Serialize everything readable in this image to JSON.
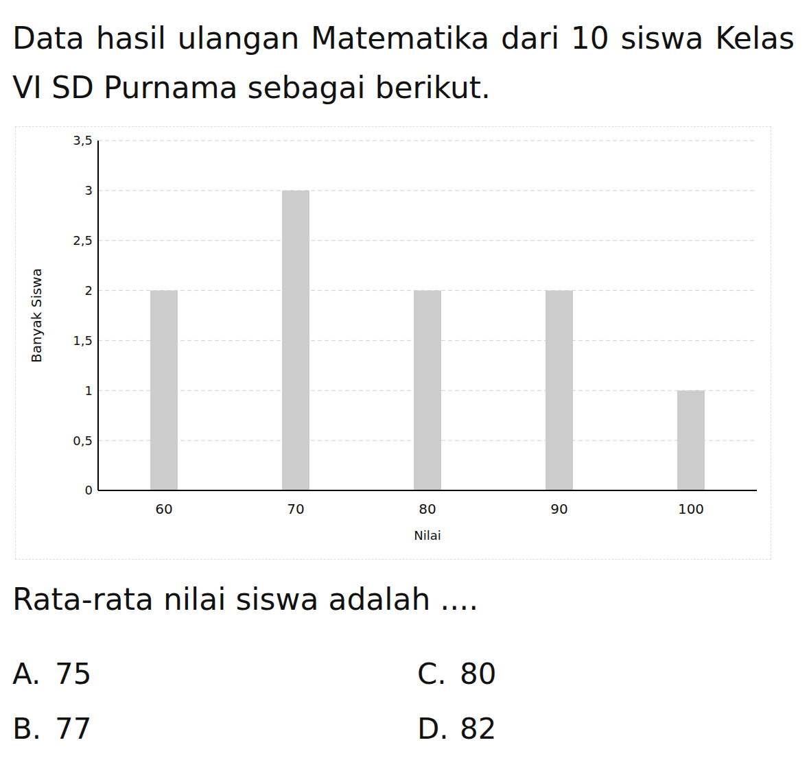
{
  "header": "Data hasil ulangan Matematika dari 10 siswa Kelas VI SD Purnama sebagai berikut.",
  "chart_data": {
    "type": "bar",
    "x_label": "Nilai",
    "y_label": "Banyak Siswa",
    "categories": [
      60,
      70,
      80,
      90,
      100
    ],
    "values": [
      2,
      3,
      2,
      2,
      1
    ],
    "color": "#cccccc",
    "ylim": [
      0,
      3.5
    ],
    "yticks": [
      0,
      {
        "value": 0.5,
        "label": "0,5"
      },
      1,
      {
        "value": 1.5,
        "label": "1,5"
      },
      2,
      {
        "value": 2.5,
        "label": "2,5"
      },
      3,
      {
        "value": 3.5,
        "label": "3,5"
      }
    ],
    "grid": true
  },
  "question": "Rata-rata nilai siswa adalah ....",
  "options": [
    {
      "letter": "A.",
      "text": "75"
    },
    {
      "letter": "B.",
      "text": "77"
    },
    {
      "letter": "C.",
      "text": "80"
    },
    {
      "letter": "D.",
      "text": "82"
    }
  ]
}
